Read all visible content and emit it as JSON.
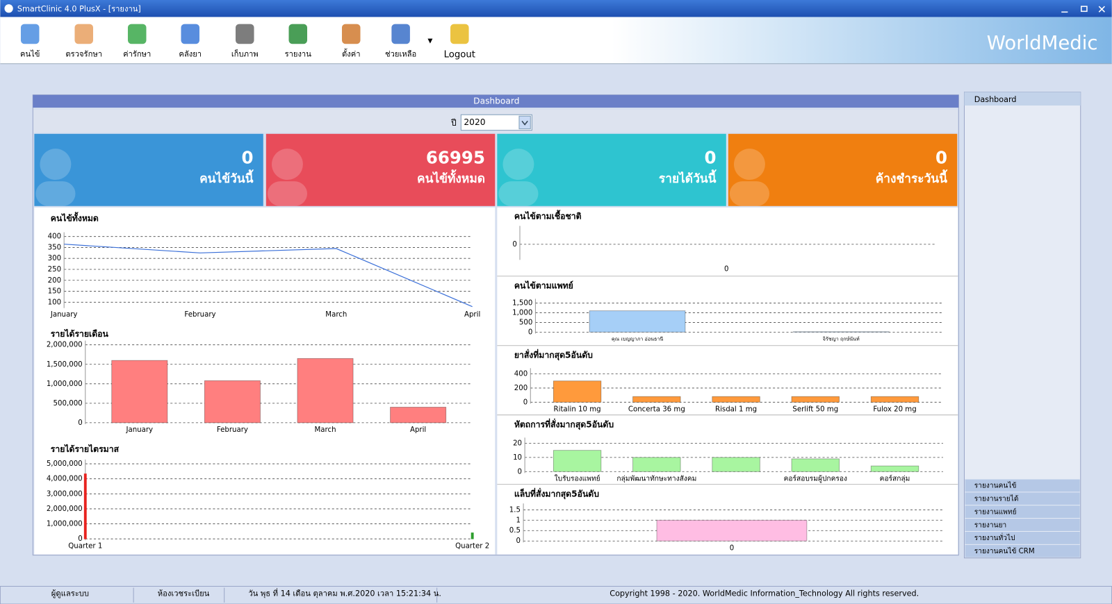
{
  "window": {
    "title": "SmartClinic 4.0 PlusX - [รายงาน]"
  },
  "toolbar": {
    "items": [
      "คนไข้",
      "ตรวจรักษา",
      "ค่ารักษา",
      "คลังยา",
      "เก็บภาพ",
      "รายงาน",
      "ตั้งค่า",
      "ช่วยเหลือ",
      "Logout"
    ],
    "brand": "WorldMedic"
  },
  "dashboard": {
    "title": "Dashboard",
    "year_label": "ปี",
    "year": "2020",
    "kpis": [
      {
        "value": 0,
        "label": "คนไข้วันนี้",
        "color": "#3a95d8"
      },
      {
        "value": 66995,
        "label": "คนไข้ทั้งหมด",
        "color": "#e84c5a"
      },
      {
        "value": 0,
        "label": "รายได้วันนี้",
        "color": "#2ec4d0"
      },
      {
        "value": 0,
        "label": "ค้างชำระวันนี้",
        "color": "#f07f10"
      }
    ],
    "charts": [
      {
        "type": "line",
        "title": "คนไข้ทั้งหมด",
        "categories": [
          "January",
          "February",
          "March",
          "April"
        ],
        "values": [
          365,
          325,
          345,
          80
        ],
        "color": "#3a6fd8",
        "ylim": [
          80,
          400
        ],
        "yticks": [
          100,
          150,
          200,
          250,
          300,
          350,
          400
        ],
        "grid": true
      },
      {
        "type": "bar",
        "title": "รายได้รายเดือน",
        "categories": [
          "January",
          "February",
          "March",
          "April"
        ],
        "values": [
          1600000,
          1080000,
          1650000,
          400000
        ],
        "color": "#ff7f7f",
        "ylim": [
          0,
          2000000
        ],
        "yticks": [
          0,
          {
            "value": 500000,
            "label": "500,000"
          },
          {
            "value": 1000000,
            "label": "1,000,000"
          },
          {
            "value": 1500000,
            "label": "1,500,000"
          },
          {
            "value": 2000000,
            "label": "2,000,000"
          }
        ],
        "grid": true
      },
      {
        "type": "bar",
        "title": "รายได้รายไตรมาส",
        "categories": [
          "Quarter 1",
          "Quarter 2"
        ],
        "values": [
          4330000,
          400000
        ],
        "colors": [
          "#e8231f",
          "#2e9e2e"
        ],
        "ylim": [
          0,
          5000000
        ],
        "yticks": [
          0,
          {
            "value": 1000000,
            "label": "1,000,000"
          },
          {
            "value": 2000000,
            "label": "2,000,000"
          },
          {
            "value": 3000000,
            "label": "3,000,000"
          },
          {
            "value": 4000000,
            "label": "4,000,000"
          },
          {
            "value": 5000000,
            "label": "5,000,000"
          }
        ],
        "grid": true
      },
      {
        "type": "bar",
        "title": "คนไข้ตามเชื้อชาติ",
        "categories": [
          "0"
        ],
        "values": [
          0
        ],
        "color": "#a6cff7",
        "ylim": [
          -1,
          1
        ],
        "yticks": [
          0
        ],
        "grid": true
      },
      {
        "type": "bar",
        "title": "คนไข้ตามแพทย์",
        "categories": [
          "คุณ เบญญาภา อ่อนธานี",
          "จิรัชญา ฤกษ์นันท์"
        ],
        "values": [
          1100,
          20
        ],
        "color": "#a6cff7",
        "ylim": [
          0,
          1500
        ],
        "yticks": [
          0,
          500,
          {
            "value": 1000,
            "label": "1,000"
          },
          {
            "value": 1500,
            "label": "1,500"
          }
        ],
        "grid": true
      },
      {
        "type": "bar",
        "title": "ยาสั่งที่มากสุด5อันดับ",
        "categories": [
          "Ritalin 10 mg",
          "Concerta 36 mg",
          "Risdal 1 mg",
          "Serlift 50 mg",
          "Fulox 20 mg"
        ],
        "values": [
          300,
          80,
          80,
          80,
          80
        ],
        "color": "#ff9a3c",
        "ylim": [
          0,
          420
        ],
        "yticks": [
          0,
          200,
          400
        ],
        "grid": true
      },
      {
        "type": "bar",
        "title": "หัตถการที่สั่งมากสุด5อันดับ",
        "categories": [
          "ใบรับรองแพทย์",
          "กลุ่มพัฒนาทักษะทางสังคม",
          null,
          "คอร์สอบรมผู้ปกครอง",
          "คอร์สกลุ่ม"
        ],
        "values": [
          15,
          10,
          10,
          9,
          4
        ],
        "color": "#a8f5a0",
        "ylim": [
          0,
          21
        ],
        "yticks": [
          0,
          10,
          20
        ],
        "grid": true
      },
      {
        "type": "bar",
        "title": "แล็บที่สั่งมากสุด5อันดับ",
        "categories": [
          "0"
        ],
        "values": [
          1
        ],
        "color": "#ffbde3",
        "ylim": [
          0,
          1.6
        ],
        "yticks": [
          0,
          0.5,
          1,
          1.5
        ],
        "grid": true
      }
    ]
  },
  "sidebar": {
    "title": "Dashboard",
    "items": [
      "รายงานคนไข้",
      "รายงานรายได้",
      "รายงานแพทย์",
      "รายงานยา",
      "รายงานทั่วไป",
      "รายงานคนไข้ CRM"
    ]
  },
  "status": {
    "user": "ผู้ดูแลระบบ",
    "room": "ห้องเวชระเบียน",
    "datetime": "วัน พุธ ที่ 14 เดือน ตุลาคม พ.ศ.2020 เวลา 15:21:34 น.",
    "copyright": "Copyright 1998 - 2020. WorldMedic Information_Technology All rights reserved."
  }
}
